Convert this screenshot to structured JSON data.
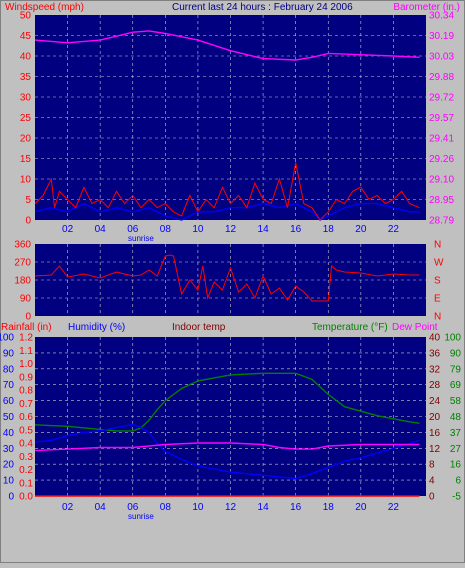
{
  "title": "Current last 24 hours : February 24 2006",
  "colors": {
    "background": "#c0c0c0",
    "plot_bg": "#000080",
    "grid": "#c8c8c8",
    "red": "#ff0000",
    "blue": "#0000ff",
    "magenta": "#ff00ff",
    "green": "#008000",
    "darkred": "#800000",
    "black": "#000000"
  },
  "chart_data": [
    {
      "id": "wind-baro",
      "type": "line",
      "left_axis_label": "Windspeed (mph)",
      "right_axis_label": "Barometer (in.)",
      "x_tick_labels": [
        "02",
        "04",
        "06",
        "08",
        "10",
        "12",
        "14",
        "16",
        "18",
        "20",
        "22"
      ],
      "x_annotation": "sunrise",
      "left_ticks": [
        "50",
        "45",
        "40",
        "35",
        "30",
        "25",
        "20",
        "15",
        "10",
        "5",
        "0"
      ],
      "right_ticks": [
        "30.34",
        "30.19",
        "30.03",
        "29.88",
        "29.72",
        "29.57",
        "29.41",
        "29.26",
        "29.10",
        "28.95",
        "28.79"
      ],
      "left_ylim": [
        0,
        50
      ],
      "right_ylim": [
        28.79,
        30.34
      ],
      "x_range_hours": [
        0,
        24
      ],
      "series": [
        {
          "color": "magenta",
          "axis": "right",
          "x": [
            0,
            2,
            4,
            5,
            6,
            7,
            8,
            10,
            12,
            14,
            16,
            17,
            18,
            20,
            22,
            23.6
          ],
          "values": [
            30.15,
            30.13,
            30.15,
            30.18,
            30.21,
            30.22,
            30.2,
            30.15,
            30.07,
            30.01,
            30.0,
            30.02,
            30.05,
            30.04,
            30.03,
            30.02
          ]
        },
        {
          "color": "blue",
          "axis": "left",
          "x": [
            0,
            1,
            2,
            3,
            4,
            5,
            6,
            7,
            8,
            9,
            10,
            11,
            12,
            13,
            14,
            15,
            16,
            17,
            17.5,
            18,
            19,
            20,
            21,
            22,
            23,
            23.6
          ],
          "values": [
            2,
            3,
            2,
            4,
            2,
            3,
            2,
            3,
            1,
            0,
            2,
            2,
            3,
            3,
            4,
            3,
            4,
            2,
            0,
            1,
            3,
            4,
            4,
            3,
            2,
            2
          ]
        },
        {
          "color": "red",
          "axis": "left",
          "x": [
            0,
            0.5,
            1,
            1.2,
            1.5,
            2,
            2.5,
            3,
            3.5,
            4,
            4.5,
            5,
            5.5,
            6,
            6.5,
            7,
            7.5,
            8,
            8.5,
            9,
            9.5,
            10,
            10.5,
            11,
            11.5,
            12,
            12.5,
            13,
            13.5,
            14,
            14.5,
            15,
            15.5,
            16,
            16.5,
            17,
            17.5,
            18,
            18.5,
            19,
            19.5,
            20,
            20.5,
            21,
            21.5,
            22,
            22.5,
            23,
            23.6
          ],
          "values": [
            4,
            6,
            10,
            3,
            7,
            5,
            3,
            8,
            4,
            5,
            3,
            7,
            4,
            6,
            3,
            5,
            3,
            4,
            2,
            1,
            6,
            2,
            5,
            3,
            8,
            4,
            6,
            3,
            9,
            5,
            4,
            10,
            3,
            14,
            4,
            3,
            0,
            2,
            5,
            4,
            7,
            8,
            5,
            6,
            4,
            5,
            7,
            4,
            3
          ]
        }
      ]
    },
    {
      "id": "wind-dir",
      "type": "line",
      "left_ticks": [
        "360",
        "270",
        "180",
        "90",
        "0"
      ],
      "right_ticks": [
        "N",
        "W",
        "S",
        "E",
        "N"
      ],
      "ylim": [
        0,
        360
      ],
      "x_range_hours": [
        0,
        24
      ],
      "series": [
        {
          "color": "red",
          "x": [
            0,
            1,
            1.5,
            2,
            3,
            4,
            5,
            6,
            6.5,
            7,
            7.5,
            8,
            8.3,
            8.5,
            9,
            9.5,
            10,
            10.3,
            10.6,
            11,
            11.5,
            12,
            12.5,
            13,
            13.5,
            14,
            14.5,
            15,
            15.5,
            16,
            16.5,
            17,
            17.3,
            17.5,
            18,
            18.2,
            18.5,
            19,
            20,
            21,
            22,
            23,
            23.6
          ],
          "values": [
            200,
            205,
            250,
            195,
            210,
            190,
            220,
            200,
            205,
            230,
            200,
            300,
            305,
            300,
            110,
            180,
            130,
            250,
            90,
            170,
            130,
            240,
            120,
            160,
            90,
            200,
            110,
            140,
            80,
            150,
            120,
            75,
            75,
            75,
            75,
            250,
            230,
            220,
            215,
            200,
            210,
            205,
            205
          ]
        }
      ]
    },
    {
      "id": "rain-hum-temp",
      "type": "line",
      "labels": {
        "rainfall": "Rainfall (in)",
        "humidity": "Humidity (%)",
        "indoor": "Indoor temp",
        "temperature": "Temperature (°F)",
        "dewpoint": "Dew Point"
      },
      "rain_ticks": [
        "1.2",
        "1.1",
        "1.0",
        "0.9",
        "0.8",
        "0.7",
        "0.6",
        "0.5",
        "0.4",
        "0.3",
        "0.2",
        "0.1",
        "0.0"
      ],
      "humidity_ticks": [
        "100",
        "90",
        "80",
        "70",
        "60",
        "50",
        "40",
        "30",
        "20",
        "10",
        "0"
      ],
      "indoor_ticks": [
        "40",
        "36",
        "32",
        "28",
        "24",
        "20",
        "16",
        "12",
        "8",
        "4",
        "0"
      ],
      "temp_ticks": [
        "100",
        "90",
        "79",
        "69",
        "58",
        "48",
        "37",
        "27",
        "16",
        "6",
        "-5"
      ],
      "x_tick_labels": [
        "02",
        "04",
        "06",
        "08",
        "10",
        "12",
        "14",
        "16",
        "18",
        "20",
        "22"
      ],
      "x_annotation": "sunrise",
      "x_range_hours": [
        0,
        24
      ],
      "series": [
        {
          "name": "Temperature (°F)",
          "color": "green",
          "scale": "temp",
          "ylim": [
            -5,
            100
          ],
          "x": [
            0,
            2,
            4,
            5,
            6,
            6.5,
            7,
            7.5,
            8,
            9,
            10,
            11,
            12,
            14,
            16,
            17,
            18,
            19,
            20,
            21,
            22,
            23,
            23.6
          ],
          "values": [
            42,
            41,
            39,
            38,
            38,
            40,
            45,
            52,
            58,
            66,
            71,
            73,
            75,
            76,
            76,
            72,
            62,
            54,
            51,
            48,
            46,
            44,
            43
          ]
        },
        {
          "name": "Humidity (%)",
          "color": "blue",
          "scale": "humidity",
          "ylim": [
            0,
            100
          ],
          "x": [
            0,
            1,
            2,
            3,
            4,
            5,
            6,
            6.5,
            7,
            7.5,
            8,
            9,
            10,
            11,
            12,
            13,
            14,
            15,
            16,
            17,
            18,
            19,
            20,
            21,
            22,
            23,
            23.6
          ],
          "values": [
            34,
            35,
            38,
            40,
            41,
            43,
            45,
            43,
            40,
            33,
            28,
            23,
            19,
            17,
            15,
            14,
            13,
            12,
            11,
            14,
            18,
            22,
            24,
            27,
            30,
            33,
            35
          ]
        },
        {
          "name": "Dew Point",
          "color": "magenta",
          "scale": "temp",
          "ylim": [
            -5,
            100
          ],
          "x": [
            0,
            2,
            4,
            6,
            8,
            10,
            12,
            14,
            15,
            16,
            17,
            18,
            20,
            22,
            23.6
          ],
          "values": [
            25,
            26,
            27,
            27,
            29,
            30,
            30,
            29,
            27,
            26,
            26,
            28,
            29,
            29,
            29
          ]
        },
        {
          "name": "Rainfall (in)",
          "color": "red",
          "scale": "rain",
          "ylim": [
            0,
            1.2
          ],
          "x": [
            0,
            23.6
          ],
          "values": [
            0,
            0
          ]
        }
      ]
    }
  ]
}
